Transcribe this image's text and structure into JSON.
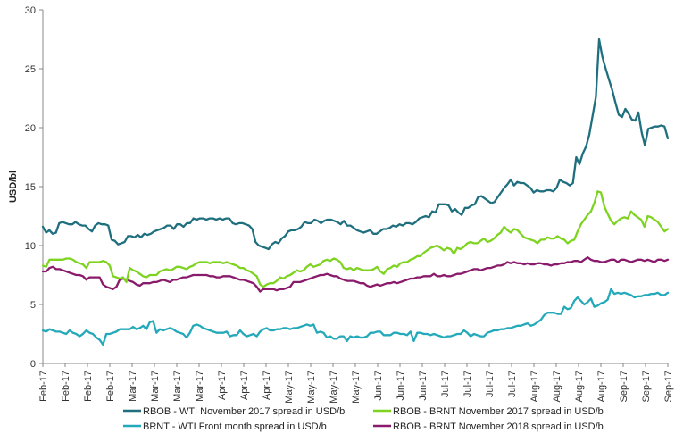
{
  "chart_data": {
    "type": "line",
    "title": "",
    "ylabel": "USD/bl",
    "xlabel": "",
    "ylim": [
      0,
      30
    ],
    "yticks": [
      "0",
      "5",
      "10",
      "15",
      "20",
      "25",
      "30"
    ],
    "grid": false,
    "legend_position": "bottom",
    "x_tick_labels": [
      "Feb-17",
      "Feb-17",
      "Feb-17",
      "Feb-17",
      "Mar-17",
      "Mar-17",
      "Mar-17",
      "Mar-17",
      "Apr-17",
      "Apr-17",
      "Apr-17",
      "May-17",
      "May-17",
      "May-17",
      "May-17",
      "Jun-17",
      "Jun-17",
      "Jun-17",
      "Jul-17",
      "Jul-17",
      "Jul-17",
      "Jul-17",
      "Aug-17",
      "Aug-17",
      "Aug-17",
      "Aug-17",
      "Sep-17",
      "Sep-17",
      "Sep-17"
    ],
    "series": [
      {
        "name": "RBOB - WTI November 2017 spread in USD/b",
        "color": "#1f6f7f",
        "values": [
          11.6,
          11.1,
          11.3,
          11.0,
          11.1,
          11.9,
          12.0,
          11.9,
          11.8,
          11.8,
          12.0,
          11.8,
          11.7,
          11.7,
          11.4,
          11.2,
          11.7,
          11.9,
          11.8,
          11.8,
          11.7,
          10.5,
          10.4,
          10.1,
          10.2,
          10.3,
          10.8,
          10.8,
          10.7,
          10.9,
          10.7,
          11.0,
          10.9,
          11.0,
          11.2,
          11.3,
          11.4,
          11.5,
          11.7,
          11.7,
          11.4,
          11.8,
          11.8,
          11.6,
          11.9,
          11.9,
          12.3,
          12.2,
          12.3,
          12.3,
          12.2,
          12.3,
          12.3,
          12.2,
          12.3,
          12.2,
          12.3,
          12.3,
          11.9,
          11.8,
          11.9,
          11.9,
          11.8,
          11.7,
          11.4,
          10.3,
          10.0,
          9.9,
          9.8,
          9.7,
          10.1,
          10.3,
          10.2,
          10.6,
          10.8,
          11.2,
          11.3,
          11.3,
          11.4,
          11.6,
          12.0,
          11.9,
          11.9,
          12.2,
          12.1,
          11.9,
          12.1,
          12.2,
          12.2,
          12.1,
          12.0,
          11.8,
          12.1,
          11.7,
          11.7,
          11.5,
          11.3,
          11.2,
          11.1,
          11.2,
          11.3,
          11.0,
          11.0,
          11.2,
          11.4,
          11.4,
          11.5,
          11.7,
          11.6,
          11.8,
          11.7,
          11.9,
          11.9,
          11.8,
          12.0,
          12.3,
          12.4,
          12.5,
          12.4,
          12.9,
          12.8,
          13.5,
          13.5,
          13.5,
          13.4,
          12.9,
          13.1,
          12.8,
          12.6,
          13.2,
          13.2,
          13.4,
          13.5,
          14.1,
          14.2,
          14.0,
          13.8,
          13.6,
          13.7,
          14.1,
          14.5,
          14.9,
          15.2,
          15.6,
          15.1,
          15.4,
          15.3,
          15.3,
          15.1,
          14.9,
          14.5,
          14.7,
          14.6,
          14.6,
          14.7,
          14.7,
          14.6,
          14.9,
          15.6,
          15.4,
          15.3,
          15.1,
          15.3,
          17.5,
          16.9,
          17.8,
          18.4,
          19.4,
          21.0,
          22.6,
          27.5,
          26.0,
          25.0,
          24.1,
          23.2,
          22.1,
          21.1,
          20.9,
          21.6,
          21.2,
          20.7,
          20.6,
          21.3,
          19.6,
          18.5,
          19.9,
          20.0,
          20.1,
          20.1,
          20.2,
          20.1,
          19.1
        ]
      },
      {
        "name": "RBOB - BRNT November 2017 spread in USD/b",
        "color": "#7ed321",
        "values": [
          8.3,
          8.2,
          8.8,
          8.8,
          8.8,
          8.8,
          8.8,
          8.9,
          8.9,
          8.8,
          8.6,
          8.5,
          8.4,
          8.1,
          8.6,
          8.6,
          8.6,
          8.6,
          8.7,
          8.6,
          8.3,
          7.4,
          7.3,
          7.2,
          7.3,
          6.9,
          8.1,
          7.9,
          7.8,
          7.6,
          7.4,
          7.3,
          7.5,
          7.5,
          7.5,
          7.8,
          7.9,
          8.0,
          7.9,
          8.0,
          8.2,
          8.2,
          8.1,
          8.0,
          8.2,
          8.3,
          8.5,
          8.6,
          8.6,
          8.6,
          8.5,
          8.6,
          8.6,
          8.6,
          8.5,
          8.6,
          8.5,
          8.4,
          8.3,
          8.1,
          8.1,
          7.9,
          7.8,
          7.6,
          7.4,
          6.7,
          6.5,
          6.7,
          6.8,
          6.8,
          7.0,
          7.3,
          7.2,
          7.4,
          7.5,
          7.7,
          7.9,
          7.8,
          7.9,
          8.2,
          8.4,
          8.2,
          8.3,
          8.4,
          8.7,
          8.8,
          8.7,
          8.9,
          8.8,
          8.6,
          8.1,
          8.0,
          8.1,
          7.9,
          8.1,
          8.0,
          7.9,
          7.9,
          7.9,
          8.0,
          8.2,
          7.8,
          7.6,
          8.0,
          8.1,
          8.3,
          8.2,
          8.5,
          8.6,
          8.6,
          8.8,
          8.9,
          9.1,
          9.1,
          9.4,
          9.6,
          9.8,
          9.9,
          10.0,
          9.8,
          9.6,
          9.8,
          9.7,
          9.3,
          9.8,
          9.7,
          9.9,
          10.2,
          10.3,
          10.2,
          10.2,
          10.4,
          10.6,
          10.3,
          10.4,
          10.6,
          10.9,
          11.1,
          11.6,
          11.3,
          11.1,
          11.4,
          11.3,
          11.0,
          10.7,
          10.6,
          10.5,
          10.4,
          10.2,
          10.5,
          10.5,
          10.7,
          10.6,
          10.6,
          10.8,
          10.6,
          10.5,
          10.2,
          10.4,
          10.5,
          11.2,
          11.8,
          12.2,
          12.6,
          12.9,
          13.6,
          14.6,
          14.5,
          13.3,
          12.7,
          12.1,
          11.8,
          12.1,
          12.3,
          12.4,
          12.3,
          12.9,
          12.6,
          12.4,
          12.2,
          11.6,
          12.5,
          12.4,
          12.2,
          12.0,
          11.6,
          11.2,
          11.4
        ]
      },
      {
        "name": "BRNT - WTI Front month spread in USD/b",
        "color": "#23a9b9",
        "values": [
          2.8,
          2.7,
          2.9,
          2.8,
          2.7,
          2.7,
          2.6,
          2.5,
          2.8,
          2.6,
          2.5,
          2.3,
          2.5,
          2.8,
          2.6,
          2.5,
          2.2,
          2.0,
          1.6,
          2.5,
          2.5,
          2.6,
          2.7,
          2.9,
          2.9,
          2.9,
          2.9,
          3.1,
          2.9,
          3.0,
          3.2,
          2.9,
          3.5,
          3.6,
          2.6,
          2.9,
          2.8,
          2.9,
          3.0,
          2.9,
          2.7,
          2.6,
          2.5,
          2.2,
          2.6,
          3.2,
          3.3,
          3.2,
          3.0,
          2.9,
          2.8,
          2.7,
          2.6,
          2.6,
          2.6,
          2.7,
          2.3,
          2.4,
          2.4,
          2.8,
          2.5,
          2.3,
          2.4,
          2.5,
          2.3,
          2.7,
          2.9,
          3.0,
          2.8,
          2.8,
          2.9,
          2.9,
          3.0,
          3.0,
          2.9,
          3.0,
          3.0,
          3.1,
          3.2,
          3.3,
          3.2,
          3.3,
          2.6,
          2.7,
          2.6,
          2.2,
          2.3,
          2.1,
          2.1,
          2.3,
          2.3,
          1.9,
          2.3,
          2.2,
          2.3,
          2.2,
          2.2,
          2.3,
          2.6,
          2.6,
          2.7,
          2.7,
          2.4,
          2.4,
          2.4,
          2.6,
          2.6,
          2.5,
          2.5,
          2.4,
          2.7,
          1.9,
          2.6,
          2.6,
          2.5,
          2.5,
          2.4,
          2.5,
          2.4,
          2.3,
          2.2,
          2.3,
          2.3,
          2.4,
          2.5,
          2.5,
          2.8,
          2.6,
          2.3,
          2.5,
          2.4,
          2.3,
          2.3,
          2.6,
          2.7,
          2.8,
          2.8,
          2.9,
          2.9,
          3.0,
          3.0,
          3.1,
          3.2,
          3.2,
          3.3,
          3.4,
          3.2,
          3.3,
          3.5,
          3.7,
          4.1,
          4.3,
          4.3,
          4.3,
          4.2,
          4.2,
          4.8,
          4.6,
          4.7,
          5.3,
          5.6,
          5.3,
          5.0,
          5.2,
          5.5,
          4.8,
          4.9,
          5.1,
          5.2,
          5.4,
          6.3,
          5.9,
          6.0,
          5.9,
          6.0,
          5.9,
          5.8,
          5.6,
          5.7,
          5.7,
          5.8,
          5.8,
          5.9,
          5.9,
          6.0,
          5.8,
          5.8,
          6.0
        ]
      },
      {
        "name": "RBOB - BRNT November 2018 spread in USD/b",
        "color": "#8a1a6b",
        "values": [
          7.8,
          7.8,
          8.1,
          8.2,
          8.0,
          8.0,
          7.9,
          7.8,
          7.7,
          7.6,
          7.5,
          7.5,
          7.4,
          7.1,
          7.3,
          7.3,
          7.3,
          7.3,
          6.7,
          6.5,
          6.4,
          6.3,
          6.5,
          7.1,
          7.2,
          7.1,
          7.0,
          6.9,
          6.7,
          6.6,
          6.8,
          6.8,
          6.8,
          6.9,
          6.9,
          7.0,
          7.1,
          7.0,
          6.9,
          7.1,
          7.1,
          7.2,
          7.3,
          7.3,
          7.4,
          7.5,
          7.5,
          7.5,
          7.5,
          7.5,
          7.4,
          7.4,
          7.3,
          7.3,
          7.4,
          7.4,
          7.4,
          7.3,
          7.2,
          7.1,
          7.1,
          7.0,
          6.9,
          6.8,
          6.5,
          6.1,
          6.3,
          6.3,
          6.3,
          6.3,
          6.2,
          6.3,
          6.3,
          6.4,
          6.5,
          6.9,
          6.9,
          6.9,
          7.0,
          7.1,
          7.2,
          7.3,
          7.4,
          7.5,
          7.5,
          7.6,
          7.5,
          7.4,
          7.4,
          7.2,
          7.1,
          7.0,
          7.0,
          7.0,
          6.9,
          6.8,
          6.8,
          6.6,
          6.5,
          6.6,
          6.7,
          6.6,
          6.7,
          6.8,
          6.8,
          6.9,
          6.8,
          6.9,
          7.0,
          7.1,
          7.2,
          7.2,
          7.3,
          7.3,
          7.4,
          7.4,
          7.4,
          7.6,
          7.4,
          7.4,
          7.5,
          7.4,
          7.4,
          7.5,
          7.6,
          7.6,
          7.7,
          7.8,
          7.9,
          8.0,
          8.0,
          7.9,
          8.0,
          8.1,
          8.1,
          8.2,
          8.3,
          8.3,
          8.4,
          8.6,
          8.5,
          8.6,
          8.5,
          8.5,
          8.4,
          8.5,
          8.4,
          8.4,
          8.5,
          8.5,
          8.4,
          8.4,
          8.3,
          8.4,
          8.4,
          8.5,
          8.5,
          8.6,
          8.6,
          8.7,
          8.7,
          8.6,
          8.8,
          9.0,
          8.8,
          8.7,
          8.7,
          8.6,
          8.6,
          8.7,
          8.8,
          8.8,
          8.6,
          8.8,
          8.8,
          8.7,
          8.6,
          8.7,
          8.8,
          8.8,
          8.7,
          8.8,
          8.7,
          8.6,
          8.8,
          8.8,
          8.7,
          8.8
        ]
      }
    ]
  }
}
